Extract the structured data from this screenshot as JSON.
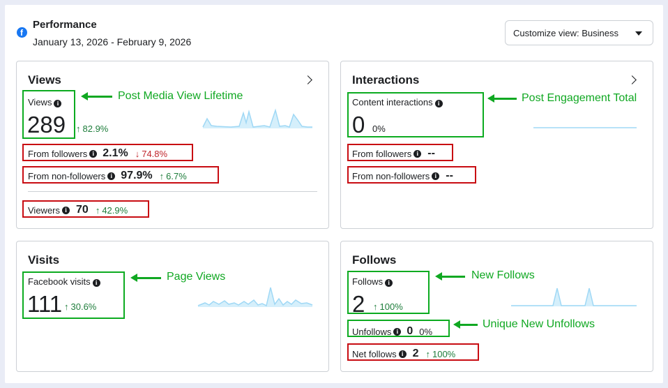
{
  "header": {
    "title": "Performance",
    "date_range": "January 13, 2026 - February 9, 2026",
    "customize_label": "Customize view: Business"
  },
  "views": {
    "title": "Views",
    "metric_label": "Views",
    "value": "289",
    "change": "82.9%",
    "from_followers_label": "From followers",
    "from_followers_value": "2.1%",
    "from_followers_change": "74.8%",
    "from_non_followers_label": "From non-followers",
    "from_non_followers_value": "97.9%",
    "from_non_followers_change": "6.7%",
    "viewers_label": "Viewers",
    "viewers_value": "70",
    "viewers_change": "42.9%"
  },
  "interactions": {
    "title": "Interactions",
    "metric_label": "Content interactions",
    "value": "0",
    "change": "0%",
    "from_followers_label": "From followers",
    "from_followers_value": "--",
    "from_non_followers_label": "From non-followers",
    "from_non_followers_value": "--"
  },
  "visits": {
    "title": "Visits",
    "metric_label": "Facebook visits",
    "value": "111",
    "change": "30.6%"
  },
  "follows": {
    "title": "Follows",
    "metric_label": "Follows",
    "value": "2",
    "change": "100%",
    "unfollows_label": "Unfollows",
    "unfollows_value": "0",
    "unfollows_change": "0%",
    "net_label": "Net follows",
    "net_value": "2",
    "net_change": "100%"
  },
  "annotations": {
    "views": "Post Media View Lifetime",
    "interactions": "Post Engagement Total",
    "visits": "Page Views",
    "follows": "New Follows",
    "unfollows": "Unique New Unfollows"
  },
  "colors": {
    "annotation_green": "#10a822",
    "annotation_red": "#c80c12",
    "increase": "#1e7d3b",
    "decrease": "#c0252b",
    "sparkline": "#9fd8f5"
  },
  "icons": {
    "brand": "facebook-logo-icon",
    "info": "info-icon",
    "navigate": "chevron-right-icon",
    "dropdown": "caret-down-icon",
    "up": "arrow-up-icon",
    "down": "arrow-down-icon"
  }
}
